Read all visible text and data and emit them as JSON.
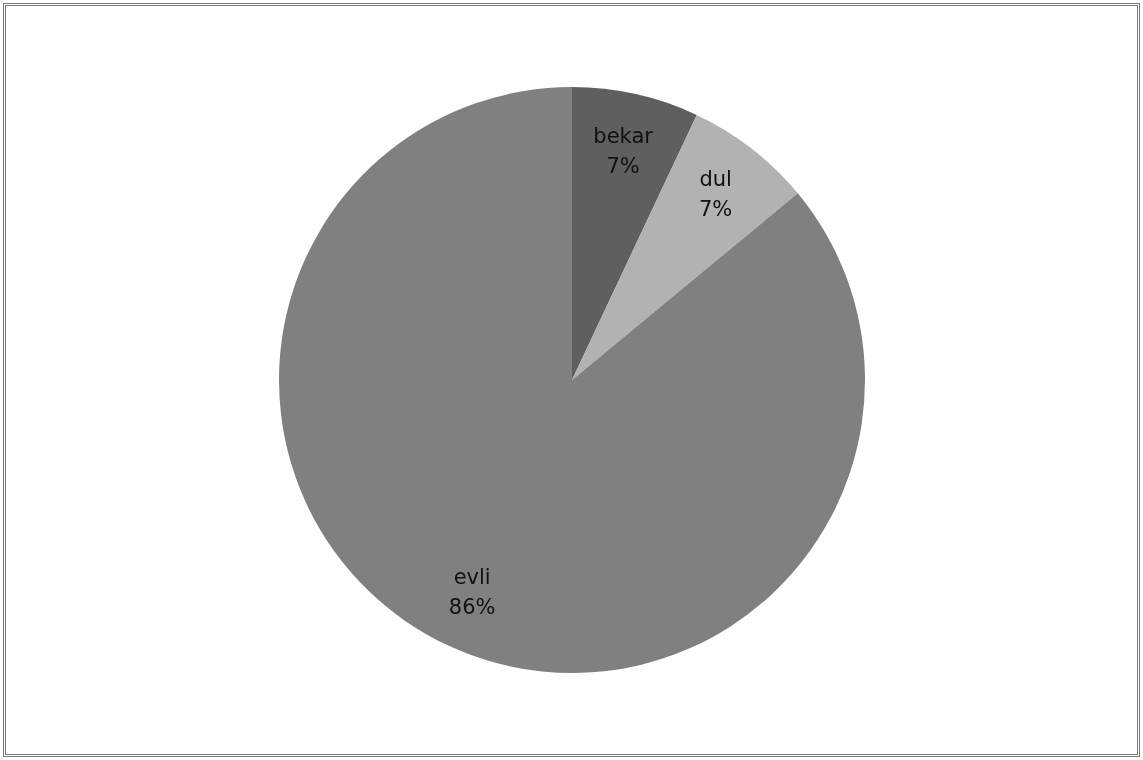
{
  "chart_data": {
    "type": "pie",
    "categories": [
      "bekar",
      "dul",
      "evli"
    ],
    "values": [
      7,
      7,
      86
    ],
    "colors": [
      "#5f5f5f",
      "#b2b2b2",
      "#808080"
    ],
    "value_labels": [
      "7%",
      "7%",
      "86%"
    ],
    "legend": false
  }
}
